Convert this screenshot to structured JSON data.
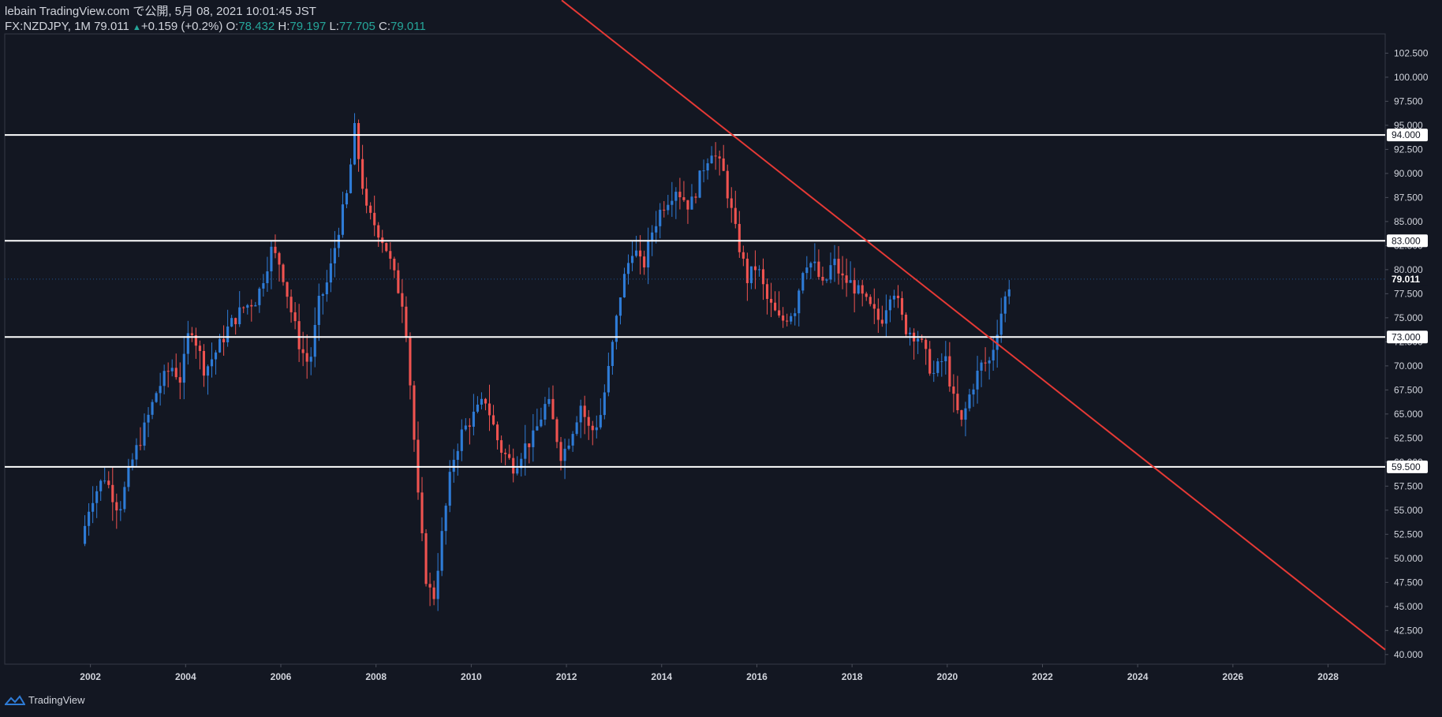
{
  "header": {
    "line1": "lebain TradingView.com で公開, 5月 08, 2021 10:01:45 JST",
    "symbol": "FX:NZDJPY, 1M",
    "last": "79.011",
    "change_arrow": "▲",
    "change": "+0.159 (+0.2%)",
    "o_label": "O:",
    "o_value": "78.432",
    "h_label": "H:",
    "h_value": "79.197",
    "l_label": "L:",
    "l_value": "77.705",
    "c_label": "C:",
    "c_value": "79.011"
  },
  "footer": {
    "brand": "TradingView",
    "logo_icon": "tradingview-logo-icon"
  },
  "colors": {
    "background": "#131722",
    "up": "#2e7bd6",
    "down": "#ef5350",
    "trendline": "#e53935",
    "level": "#ffffff",
    "axis_text": "#d1d4dc",
    "last_tag": "#2e7bd6"
  },
  "chart_data": {
    "type": "candlestick",
    "title": "FX:NZDJPY, 1M",
    "y_range": [
      39.0,
      104.5
    ],
    "x_range": [
      2000.2,
      2029.2
    ],
    "y_ticks": [
      "40.000",
      "42.500",
      "45.000",
      "47.500",
      "50.000",
      "52.500",
      "55.000",
      "57.500",
      "60.000",
      "62.500",
      "65.000",
      "67.500",
      "70.000",
      "72.500",
      "75.000",
      "77.500",
      "80.000",
      "82.500",
      "85.000",
      "87.500",
      "90.000",
      "92.500",
      "95.000",
      "97.500",
      "100.000",
      "102.500"
    ],
    "y_tick_values": [
      40,
      42.5,
      45,
      47.5,
      50,
      52.5,
      55,
      57.5,
      60,
      62.5,
      65,
      67.5,
      70,
      72.5,
      75,
      77.5,
      80,
      82.5,
      85,
      87.5,
      90,
      92.5,
      95,
      97.5,
      100,
      102.5
    ],
    "x_ticks": [
      "2002",
      "2004",
      "2006",
      "2008",
      "2010",
      "2012",
      "2014",
      "2016",
      "2018",
      "2020",
      "2022",
      "2024",
      "2026",
      "2028"
    ],
    "x_tick_values": [
      2002,
      2004,
      2006,
      2008,
      2010,
      2012,
      2014,
      2016,
      2018,
      2020,
      2022,
      2024,
      2026,
      2028
    ],
    "horizontal_levels": [
      {
        "value": 94.0,
        "label": "94.000"
      },
      {
        "value": 83.0,
        "label": "83.000"
      },
      {
        "value": 73.0,
        "label": "73.000"
      },
      {
        "value": 59.5,
        "label": "59.500"
      }
    ],
    "last_price": {
      "value": 79.011,
      "label": "79.011"
    },
    "trendline": {
      "start": [
        2011.9,
        108.0
      ],
      "end": [
        2029.2,
        40.5
      ]
    },
    "anchors": [
      [
        2001.8,
        51.5
      ],
      [
        2002.0,
        56.0
      ],
      [
        2002.3,
        58.5
      ],
      [
        2002.6,
        55.0
      ],
      [
        2002.9,
        60.5
      ],
      [
        2003.1,
        63.0
      ],
      [
        2003.4,
        67.5
      ],
      [
        2003.7,
        70.0
      ],
      [
        2003.9,
        68.5
      ],
      [
        2004.1,
        74.5
      ],
      [
        2004.4,
        69.5
      ],
      [
        2004.7,
        72.0
      ],
      [
        2004.9,
        74.0
      ],
      [
        2005.2,
        76.0
      ],
      [
        2005.5,
        77.0
      ],
      [
        2005.8,
        82.0
      ],
      [
        2006.0,
        80.5
      ],
      [
        2006.2,
        76.0
      ],
      [
        2006.4,
        72.0
      ],
      [
        2006.6,
        70.0
      ],
      [
        2006.8,
        76.5
      ],
      [
        2007.0,
        79.0
      ],
      [
        2007.2,
        84.0
      ],
      [
        2007.4,
        88.0
      ],
      [
        2007.55,
        94.5
      ],
      [
        2007.8,
        86.0
      ],
      [
        2008.0,
        84.5
      ],
      [
        2008.2,
        82.5
      ],
      [
        2008.4,
        79.0
      ],
      [
        2008.6,
        76.0
      ],
      [
        2008.75,
        66.0
      ],
      [
        2008.9,
        55.0
      ],
      [
        2009.05,
        48.0
      ],
      [
        2009.2,
        45.5
      ],
      [
        2009.4,
        53.0
      ],
      [
        2009.6,
        60.0
      ],
      [
        2009.8,
        63.0
      ],
      [
        2010.0,
        64.5
      ],
      [
        2010.3,
        66.5
      ],
      [
        2010.6,
        61.5
      ],
      [
        2010.9,
        59.5
      ],
      [
        2011.1,
        61.5
      ],
      [
        2011.3,
        62.5
      ],
      [
        2011.6,
        66.5
      ],
      [
        2011.9,
        60.5
      ],
      [
        2012.1,
        63.0
      ],
      [
        2012.3,
        66.0
      ],
      [
        2012.5,
        63.0
      ],
      [
        2012.7,
        64.5
      ],
      [
        2012.9,
        70.0
      ],
      [
        2013.15,
        78.0
      ],
      [
        2013.4,
        82.5
      ],
      [
        2013.6,
        80.0
      ],
      [
        2013.8,
        84.0
      ],
      [
        2014.0,
        86.5
      ],
      [
        2014.3,
        88.5
      ],
      [
        2014.6,
        86.5
      ],
      [
        2014.9,
        91.0
      ],
      [
        2015.05,
        92.5
      ],
      [
        2015.3,
        90.0
      ],
      [
        2015.55,
        84.0
      ],
      [
        2015.8,
        79.0
      ],
      [
        2016.0,
        80.5
      ],
      [
        2016.2,
        77.0
      ],
      [
        2016.5,
        74.5
      ],
      [
        2016.8,
        76.0
      ],
      [
        2017.0,
        81.0
      ],
      [
        2017.2,
        80.5
      ],
      [
        2017.4,
        78.0
      ],
      [
        2017.6,
        81.0
      ],
      [
        2017.8,
        79.0
      ],
      [
        2018.0,
        78.5
      ],
      [
        2018.3,
        76.5
      ],
      [
        2018.6,
        74.5
      ],
      [
        2018.85,
        78.5
      ],
      [
        2019.1,
        74.0
      ],
      [
        2019.4,
        73.0
      ],
      [
        2019.7,
        69.0
      ],
      [
        2019.95,
        71.0
      ],
      [
        2020.15,
        66.0
      ],
      [
        2020.3,
        64.0
      ],
      [
        2020.5,
        67.5
      ],
      [
        2020.7,
        70.0
      ],
      [
        2020.9,
        70.5
      ],
      [
        2021.1,
        75.0
      ],
      [
        2021.33,
        79.0
      ]
    ]
  }
}
